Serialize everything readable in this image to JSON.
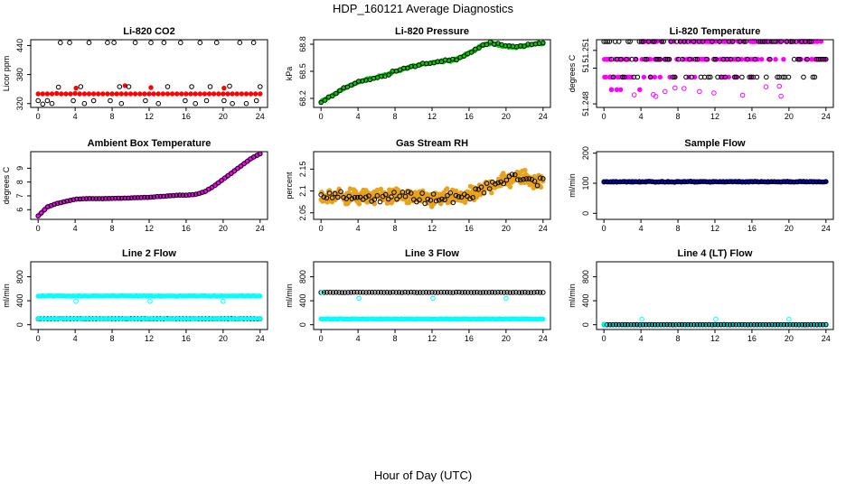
{
  "figure": {
    "title": "HDP_160121  Average Diagnostics",
    "xlabel": "Hour of Day (UTC)"
  },
  "chart_data": [
    {
      "id": "co2",
      "title": "Li-820 CO2",
      "type": "scatter",
      "ylabel": "Licor ppm",
      "xlim": [
        -0.8,
        24.8
      ],
      "ylim": [
        312,
        452
      ],
      "xticks": [
        0,
        4,
        8,
        12,
        16,
        20,
        24
      ],
      "xtick_labels": [
        "0",
        "4",
        "8",
        "12",
        "16",
        "20",
        "24"
      ],
      "yticks": [
        320,
        380,
        440
      ],
      "ytick_labels": [
        "320",
        "380",
        "440"
      ],
      "series": [
        {
          "name": "line 1",
          "color": "#ff0000",
          "style": "filled",
          "x": [
            0,
            0.5,
            1,
            1.5,
            2,
            2.5,
            3,
            3.5,
            4,
            4.5,
            5,
            5.5,
            6,
            6.5,
            7,
            7.5,
            8,
            8.5,
            9,
            9.5,
            10,
            10.5,
            11,
            11.5,
            12,
            12.5,
            13,
            13.5,
            14,
            14.5,
            15,
            15.5,
            16,
            16.5,
            17,
            17.5,
            18,
            18.5,
            19,
            19.5,
            20,
            20.5,
            21,
            21.5,
            22,
            22.5,
            23,
            23.5,
            24,
            4.1,
            9.4,
            12.2,
            20.1
          ],
          "y": [
            340,
            340,
            340,
            340,
            341,
            340,
            340,
            340,
            341,
            340,
            340,
            340,
            340,
            340,
            340,
            340,
            340,
            340,
            340,
            340,
            340,
            340,
            340,
            340,
            340,
            340,
            340,
            340,
            340,
            340,
            340,
            340,
            340,
            340,
            340,
            340,
            340,
            340,
            340,
            340,
            340,
            340,
            340,
            340,
            340,
            340,
            340,
            340,
            340,
            352,
            357,
            353,
            352
          ]
        },
        {
          "name": "lines 2-4",
          "color": "#000000",
          "style": "open",
          "x": [
            0.5,
            1.0,
            2.2,
            2.4,
            3.4,
            3.8,
            4.6,
            5.5,
            6.0,
            7.5,
            7.8,
            8.2,
            8.8,
            9.8,
            10.5,
            12.2,
            11.6,
            13.6,
            14.0,
            15.4,
            15.9,
            16.6,
            17.5,
            18.2,
            18.6,
            19.3,
            20.1,
            20.7,
            21.8,
            23.3,
            23.6,
            24.0,
            22.5,
            21.0,
            17.0,
            13.0,
            9.0,
            5.0,
            1.5,
            0.0
          ],
          "y": [
            319,
            326,
            354,
            446,
            446,
            326,
            355,
            446,
            326,
            446,
            326,
            446,
            355,
            355,
            446,
            446,
            326,
            446,
            355,
            446,
            326,
            355,
            446,
            326,
            355,
            446,
            326,
            356,
            446,
            446,
            326,
            355,
            320,
            320,
            320,
            320,
            320,
            320,
            320,
            326
          ]
        }
      ]
    },
    {
      "id": "pressure",
      "title": "Li-820 Pressure",
      "type": "scatter",
      "ylabel": "kPa",
      "xlim": [
        -0.8,
        24.8
      ],
      "ylim": [
        68.1,
        68.85
      ],
      "xticks": [
        0,
        4,
        8,
        12,
        16,
        20,
        24
      ],
      "xtick_labels": [
        "0",
        "4",
        "8",
        "12",
        "16",
        "20",
        "24"
      ],
      "yticks": [
        68.2,
        68.5,
        68.8
      ],
      "ytick_labels": [
        "68.2",
        "68.5",
        "68.8"
      ],
      "curve": {
        "x": [
          0,
          1,
          2,
          3,
          4,
          5,
          6,
          7,
          8,
          9,
          10,
          11,
          12,
          13,
          14,
          15,
          16,
          17,
          18,
          19,
          20,
          21,
          22,
          23,
          24
        ],
        "y": [
          68.16,
          68.22,
          68.28,
          68.34,
          68.38,
          68.41,
          68.43,
          68.46,
          68.5,
          68.53,
          68.56,
          68.58,
          68.59,
          68.61,
          68.62,
          68.65,
          68.7,
          68.76,
          68.81,
          68.8,
          68.78,
          68.77,
          68.78,
          68.8,
          68.81
        ]
      },
      "series": [
        {
          "name": "line 1",
          "color": "#00cc00",
          "style": "filled",
          "noise": 0.015,
          "count": 150
        },
        {
          "name": "lines 2-4",
          "color": "#000000",
          "style": "open",
          "noise": 0.02,
          "count": 60
        }
      ]
    },
    {
      "id": "temperature",
      "title": "Li-820 Temperature",
      "type": "scatter",
      "ylabel": "degrees C",
      "xlim": [
        -0.8,
        24.8
      ],
      "ylim": [
        51.2478,
        51.2516
      ],
      "xticks": [
        0,
        4,
        8,
        12,
        16,
        20,
        24
      ],
      "xtick_labels": [
        "0",
        "4",
        "8",
        "12",
        "16",
        "20",
        "24"
      ],
      "yticks": [
        51.248,
        51.251
      ],
      "ytick_labels": [
        "51.248",
        "51.251"
      ],
      "extra_ytick_labels": [
        "51"
      ],
      "levels": [
        51.2515,
        51.2505,
        51.2495,
        51.2488
      ],
      "series": [
        {
          "name": "line 1",
          "color": "#ff00ff",
          "style": "filled"
        },
        {
          "name": "lines 2-4",
          "color": "#000000",
          "style": "open"
        }
      ]
    },
    {
      "id": "ambient",
      "title": "Ambient Box Temperature",
      "type": "scatter",
      "ylabel": "degrees C",
      "xlim": [
        -0.8,
        24.8
      ],
      "ylim": [
        5.3,
        10.2
      ],
      "xticks": [
        0,
        4,
        8,
        12,
        16,
        20,
        24
      ],
      "xtick_labels": [
        "0",
        "4",
        "8",
        "12",
        "16",
        "20",
        "24"
      ],
      "yticks": [
        6,
        7,
        8,
        9
      ],
      "ytick_labels": [
        "6",
        "7",
        "8",
        "9"
      ],
      "curve": {
        "x": [
          0,
          1,
          2,
          3,
          4,
          5,
          6,
          7,
          8,
          9,
          10,
          11,
          12,
          13,
          14,
          15,
          16,
          17,
          18,
          19,
          20,
          21,
          22,
          23,
          24
        ],
        "y": [
          5.55,
          6.2,
          6.45,
          6.6,
          6.75,
          6.8,
          6.8,
          6.8,
          6.82,
          6.83,
          6.85,
          6.88,
          6.9,
          6.95,
          7.0,
          7.05,
          7.05,
          7.1,
          7.3,
          7.7,
          8.2,
          8.7,
          9.2,
          9.7,
          10.05
        ]
      },
      "series": [
        {
          "name": "line 1",
          "color": "#ff00ff",
          "style": "filled",
          "noise": 0.02,
          "count": 120
        },
        {
          "name": "lines 2-4",
          "color": "#000000",
          "style": "open",
          "noise": 0.02,
          "count": 70
        }
      ]
    },
    {
      "id": "rh",
      "title": "Gas Stream RH",
      "type": "scatter",
      "ylabel": "percent",
      "xlim": [
        -0.8,
        24.8
      ],
      "ylim": [
        2.035,
        2.19
      ],
      "xticks": [
        0,
        4,
        8,
        12,
        16,
        20,
        24
      ],
      "xtick_labels": [
        "0",
        "4",
        "8",
        "12",
        "16",
        "20",
        "24"
      ],
      "yticks": [
        2.05,
        2.1,
        2.15
      ],
      "ytick_labels": [
        "2.05",
        "2.1",
        "2.15"
      ],
      "curve": {
        "x": [
          0,
          2,
          4,
          6,
          8,
          10,
          12,
          14,
          16,
          17,
          18,
          19,
          20,
          21,
          22,
          23,
          24
        ],
        "y": [
          2.085,
          2.09,
          2.085,
          2.088,
          2.09,
          2.085,
          2.08,
          2.085,
          2.09,
          2.095,
          2.11,
          2.12,
          2.125,
          2.13,
          2.13,
          2.125,
          2.12
        ]
      },
      "series": [
        {
          "name": "line 1",
          "color": "#e8a21c",
          "style": "filled",
          "noise": 0.025,
          "count": 420
        },
        {
          "name": "lines 2-4",
          "color": "#000000",
          "style": "open",
          "noise": 0.018,
          "count": 80
        }
      ]
    },
    {
      "id": "sample",
      "title": "Sample Flow",
      "type": "scatter",
      "ylabel": "ml/min",
      "xlim": [
        -0.8,
        24.8
      ],
      "ylim": [
        -20,
        205
      ],
      "xticks": [
        0,
        4,
        8,
        12,
        16,
        20,
        24
      ],
      "xtick_labels": [
        "0",
        "4",
        "8",
        "12",
        "16",
        "20",
        "24"
      ],
      "yticks": [
        0,
        100,
        200
      ],
      "ytick_labels": [
        "0",
        "100",
        "200"
      ],
      "level": 105,
      "series": [
        {
          "name": "line 1",
          "color": "#0000cc",
          "style": "filled",
          "noise": 2,
          "count": 150
        },
        {
          "name": "lines 2-4",
          "color": "#000000",
          "style": "open",
          "noise": 2,
          "count": 70
        }
      ]
    },
    {
      "id": "line2",
      "title": "Line 2 Flow",
      "type": "scatter",
      "ylabel": "ml/min",
      "xlim": [
        -0.8,
        24.8
      ],
      "ylim": [
        -80,
        1050
      ],
      "xticks": [
        0,
        4,
        8,
        12,
        16,
        20,
        24
      ],
      "xtick_labels": [
        "0",
        "4",
        "8",
        "12",
        "16",
        "20",
        "24"
      ],
      "yticks": [
        0,
        400,
        800
      ],
      "ytick_labels": [
        "0",
        "400",
        "800"
      ],
      "bands": [
        {
          "color": "#00ffff",
          "style": "filled",
          "level": 480,
          "count": 150,
          "noise": 8
        },
        {
          "color": "#000000",
          "style": "open",
          "level": 100,
          "count": 70,
          "noise": 3
        },
        {
          "color": "#00ffff",
          "style": "filled",
          "level": 100,
          "count": 60,
          "noise": 3
        }
      ],
      "outliers": {
        "color": "#00ffff",
        "x": [
          4.1,
          12.1,
          20.0
        ],
        "y": [
          390,
          390,
          390
        ]
      }
    },
    {
      "id": "line3",
      "title": "Line 3 Flow",
      "type": "scatter",
      "ylabel": "ml/min",
      "xlim": [
        -0.8,
        24.8
      ],
      "ylim": [
        -80,
        1050
      ],
      "xticks": [
        0,
        4,
        8,
        12,
        16,
        20,
        24
      ],
      "xtick_labels": [
        "0",
        "4",
        "8",
        "12",
        "16",
        "20",
        "24"
      ],
      "yticks": [
        0,
        400,
        800
      ],
      "ytick_labels": [
        "0",
        "400",
        "800"
      ],
      "bands": [
        {
          "color": "#00ffff",
          "style": "filled",
          "level": 95,
          "count": 150,
          "noise": 6
        },
        {
          "color": "#000000",
          "style": "open",
          "level": 540,
          "count": 75,
          "noise": 4
        }
      ],
      "outliers": {
        "color": "#00ffff",
        "x": [
          0.1,
          4.1,
          12.1,
          20.0
        ],
        "y": [
          540,
          440,
          440,
          440
        ]
      }
    },
    {
      "id": "line4",
      "title": "Line 4 (LT) Flow",
      "type": "scatter",
      "ylabel": "ml/min",
      "xlim": [
        -0.8,
        24.8
      ],
      "ylim": [
        -80,
        1050
      ],
      "xticks": [
        0,
        4,
        8,
        12,
        16,
        20,
        24
      ],
      "xtick_labels": [
        "0",
        "4",
        "8",
        "12",
        "16",
        "20",
        "24"
      ],
      "yticks": [
        0,
        400,
        800
      ],
      "ytick_labels": [
        "0",
        "400",
        "800"
      ],
      "bands": [
        {
          "color": "#00ffff",
          "style": "filled",
          "level": 0,
          "count": 60,
          "noise": 2
        },
        {
          "color": "#000000",
          "style": "open",
          "level": 0,
          "count": 75,
          "noise": 2
        }
      ],
      "outliers": {
        "color": "#00ffff",
        "x": [
          0.0,
          4.1,
          12.1,
          20.0
        ],
        "y": [
          0,
          90,
          90,
          90
        ]
      }
    }
  ]
}
